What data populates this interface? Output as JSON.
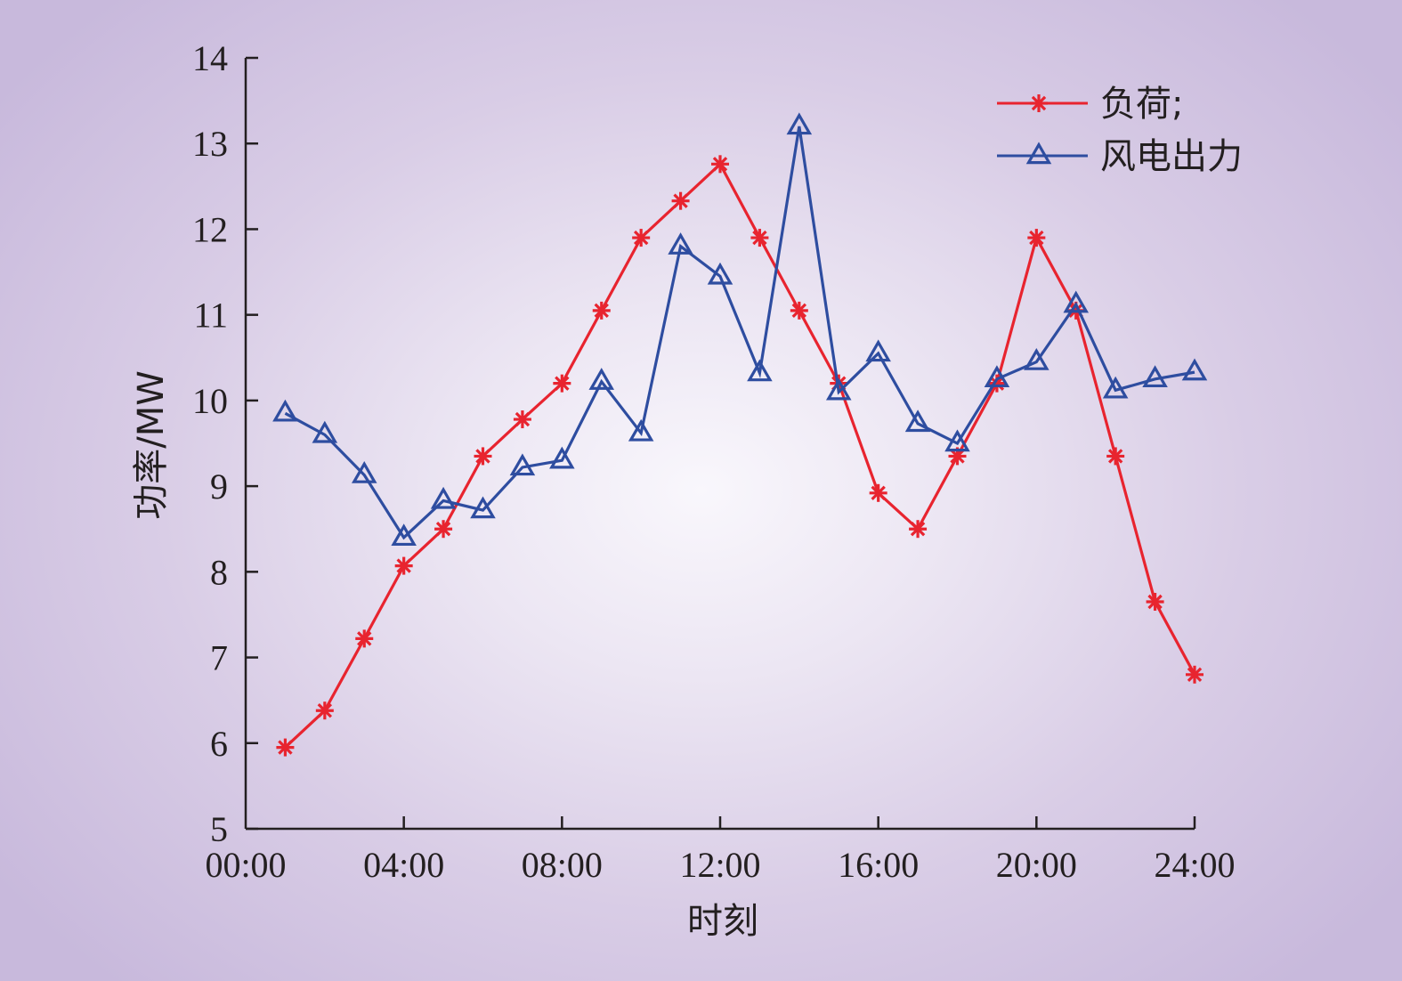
{
  "chart_data": {
    "type": "line",
    "title": "",
    "xlabel": "时刻",
    "ylabel": "功率/MW",
    "x_ticks": [
      "00:00",
      "04:00",
      "08:00",
      "12:00",
      "16:00",
      "20:00",
      "24:00"
    ],
    "x_range_hours": [
      0,
      24
    ],
    "y_ticks": [
      5,
      6,
      7,
      8,
      9,
      10,
      11,
      12,
      13,
      14
    ],
    "ylim": [
      5,
      14
    ],
    "grid": false,
    "legend_position": "top-right",
    "x_hours": [
      1,
      2,
      3,
      4,
      5,
      6,
      7,
      8,
      9,
      10,
      11,
      12,
      13,
      14,
      15,
      16,
      17,
      18,
      19,
      20,
      21,
      22,
      23,
      24
    ],
    "series": [
      {
        "name": "负荷;",
        "color": "#e8242f",
        "marker": "asterisk",
        "values": [
          5.95,
          6.38,
          7.22,
          8.07,
          8.5,
          9.35,
          9.78,
          10.2,
          11.05,
          11.9,
          12.33,
          12.76,
          11.9,
          11.05,
          10.2,
          8.92,
          8.5,
          9.35,
          10.2,
          11.9,
          11.05,
          9.35,
          7.65,
          6.8
        ]
      },
      {
        "name": "风电出力",
        "color": "#2e4da0",
        "marker": "triangle",
        "values": [
          9.85,
          9.6,
          9.13,
          8.4,
          8.83,
          8.72,
          9.22,
          9.3,
          10.22,
          9.62,
          11.8,
          11.45,
          10.32,
          13.2,
          10.1,
          10.55,
          9.73,
          9.5,
          10.25,
          10.45,
          11.12,
          10.12,
          10.25,
          10.33
        ]
      }
    ]
  }
}
